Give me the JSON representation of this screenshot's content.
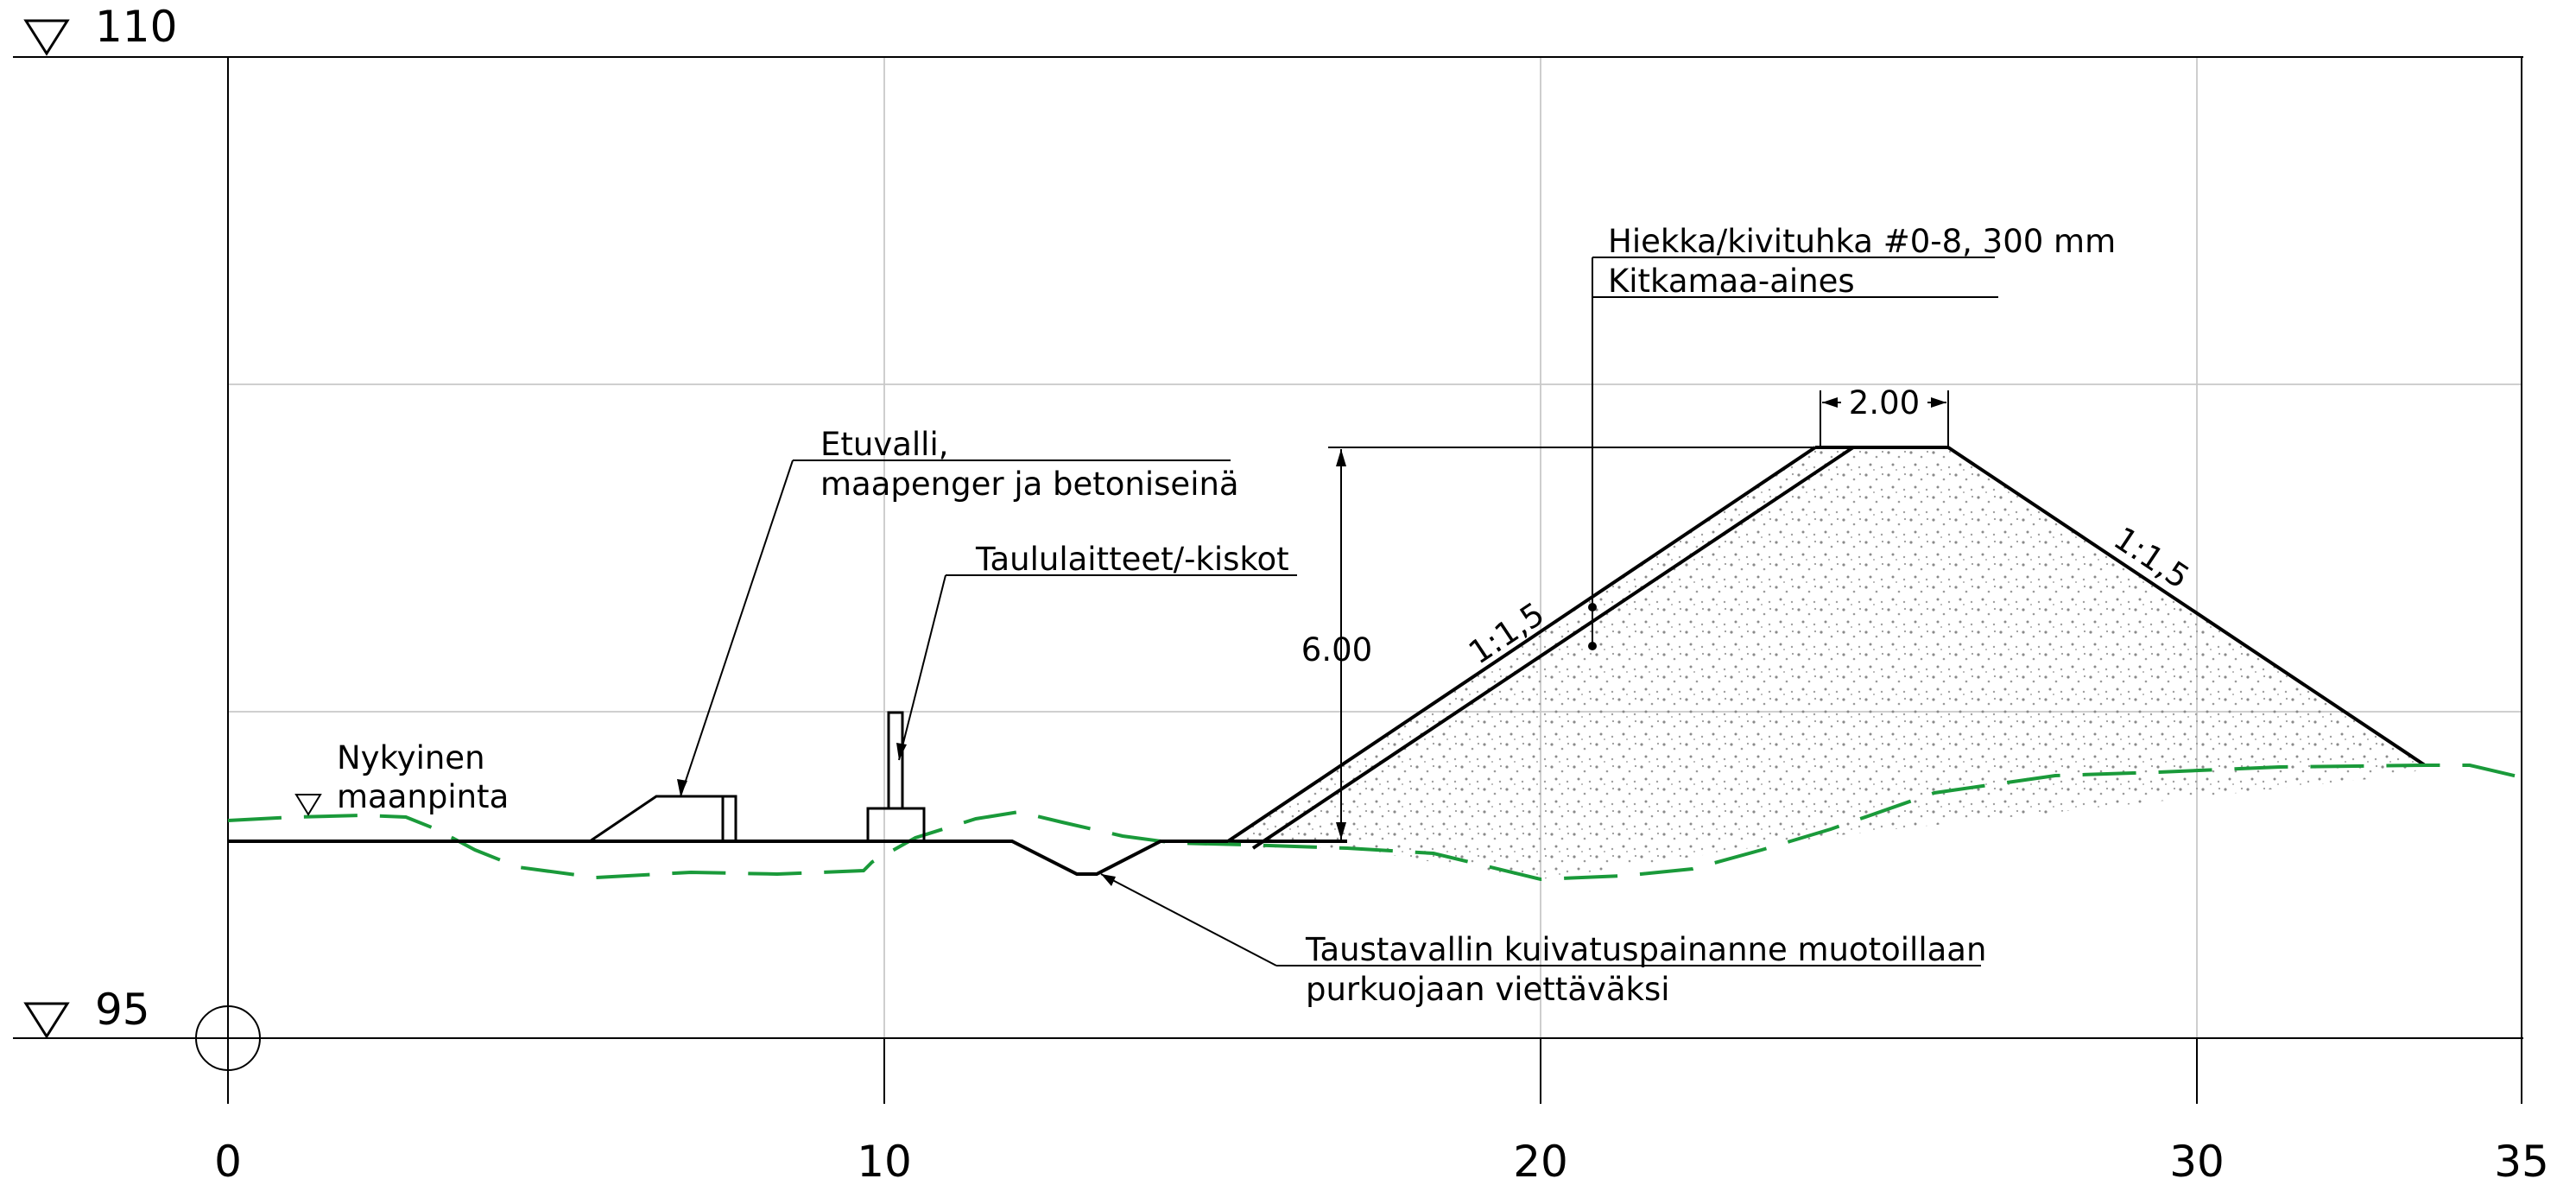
{
  "levels": {
    "top": "110",
    "bottom": "95"
  },
  "x_axis": [
    "0",
    "10",
    "20",
    "30",
    "35"
  ],
  "labels": {
    "ground": [
      "Nykyinen",
      "maanpinta"
    ],
    "front_berm": [
      "Etuvalli,",
      "maapenger ja betoniseinä"
    ],
    "sign_equipment": "Taululaitteet/-kiskot",
    "material_top": "Hiekka/kivituhka #0-8, 300 mm",
    "material_core": "Kitkamaa-aines",
    "drainage": [
      "Taustavallin kuivatuspainanne muotoillaan",
      "purkuojaan viettäväksi"
    ]
  },
  "dimensions": {
    "height": "6.00",
    "crest_width": "2.00",
    "slope_left": "1:1,5",
    "slope_right": "1:1,5"
  },
  "colors": {
    "ground_line": "#1a9a3a",
    "grid": "#c8c8c8",
    "ink": "#000000"
  },
  "icons": {
    "level_marker": "level-triangle-icon",
    "origin": "origin-circle-icon"
  }
}
